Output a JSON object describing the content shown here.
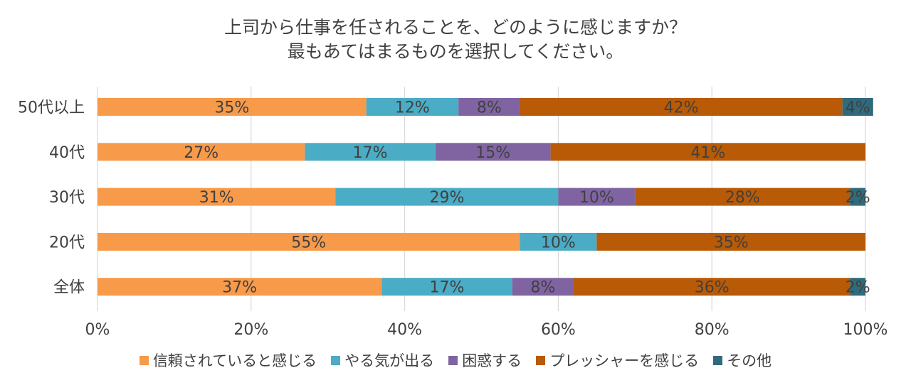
{
  "chart_data": {
    "type": "bar",
    "orientation": "horizontal",
    "stacked": true,
    "title_lines": [
      "上司から仕事を任されることを、どのように感じますか？",
      "最もあてはまるものを選択してください。"
    ],
    "categories": [
      "50代以上",
      "40代",
      "30代",
      "20代",
      "全体"
    ],
    "series": [
      {
        "name": "信頼されていると感じる",
        "color": "#F79A4A",
        "values": [
          35,
          27,
          31,
          55,
          37
        ],
        "labels": [
          "35%",
          "27%",
          "31%",
          "55%",
          "37%"
        ]
      },
      {
        "name": "やる気が出る",
        "color": "#4BACC6",
        "values": [
          12,
          17,
          29,
          10,
          17
        ],
        "labels": [
          "12%",
          "17%",
          "29%",
          "10%",
          "17%"
        ]
      },
      {
        "name": "困惑する",
        "color": "#8064A2",
        "values": [
          8,
          15,
          10,
          0,
          8
        ],
        "labels": [
          "8%",
          "15%",
          "10%",
          "",
          "8%"
        ]
      },
      {
        "name": "プレッシャーを感じる",
        "color": "#B85A06",
        "values": [
          42,
          41,
          28,
          35,
          36
        ],
        "labels": [
          "42%",
          "41%",
          "28%",
          "35%",
          "36%"
        ]
      },
      {
        "name": "その他",
        "color": "#2F6B7C",
        "values": [
          4,
          0,
          2,
          0,
          2
        ],
        "labels": [
          "4%",
          "",
          "2%",
          "",
          "2%"
        ]
      }
    ],
    "xlim": [
      0,
      100
    ],
    "xticks": [
      "0%",
      "20%",
      "40%",
      "60%",
      "80%",
      "100%"
    ],
    "legend_position": "bottom",
    "grid": true
  }
}
